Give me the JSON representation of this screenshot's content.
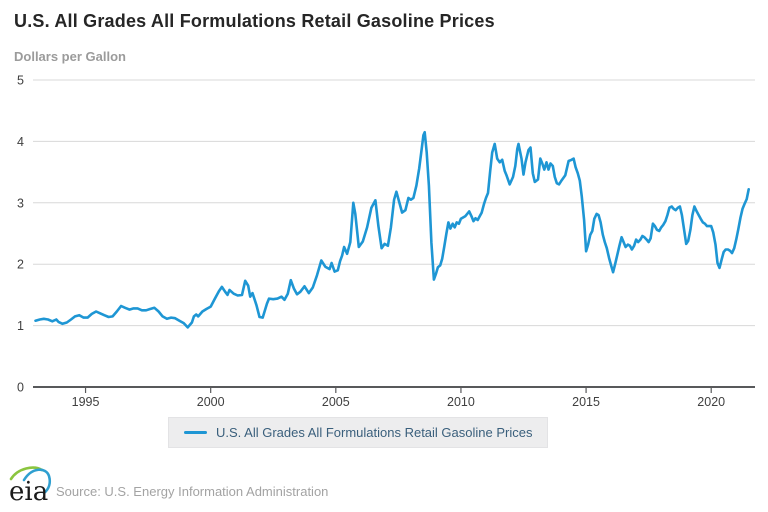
{
  "header": {
    "title": "U.S. All Grades All Formulations Retail Gasoline Prices",
    "units": "Dollars per Gallon"
  },
  "legend": {
    "label": "U.S. All Grades All Formulations Retail Gasoline Prices",
    "swatch_color": "#1e96d4"
  },
  "footer": {
    "logo_text": "eia",
    "source": "Source: U.S. Energy Information Administration"
  },
  "colors": {
    "line": "#1e96d4",
    "grid": "#d8d8d8",
    "axis": "#58595b",
    "tick_label": "#404040",
    "title": "#262626",
    "subtitle": "#9b9b9b",
    "legend_bg": "#ededee",
    "legend_text": "#3a5f7c",
    "source_text": "#a3a3a3",
    "logo_green": "#8bc53f",
    "logo_blue": "#2f9fd0"
  },
  "chart_data": {
    "type": "line",
    "title": "U.S. All Grades All Formulations Retail Gasoline Prices",
    "ylabel": "Dollars per Gallon",
    "xlabel": "",
    "xlim": [
      1992.9,
      2021.75
    ],
    "ylim": [
      0,
      5
    ],
    "x_ticks": [
      1995,
      2000,
      2005,
      2010,
      2015,
      2020
    ],
    "y_ticks": [
      0,
      1,
      2,
      3,
      4,
      5
    ],
    "grid": "horizontal",
    "legend_position": "bottom",
    "series": [
      {
        "name": "U.S. All Grades All Formulations Retail Gasoline Prices",
        "color": "#1e96d4",
        "x": [
          1993.0,
          1993.17,
          1993.33,
          1993.5,
          1993.67,
          1993.83,
          1993.92,
          1994.08,
          1994.25,
          1994.42,
          1994.58,
          1994.75,
          1994.92,
          1995.08,
          1995.25,
          1995.42,
          1995.58,
          1995.75,
          1995.92,
          1996.08,
          1996.25,
          1996.42,
          1996.58,
          1996.75,
          1996.92,
          1997.08,
          1997.25,
          1997.42,
          1997.58,
          1997.75,
          1997.92,
          1998.08,
          1998.25,
          1998.42,
          1998.58,
          1998.75,
          1998.92,
          1999.08,
          1999.25,
          1999.33,
          1999.42,
          1999.5,
          1999.67,
          1999.83,
          2000.0,
          2000.17,
          2000.33,
          2000.45,
          2000.58,
          2000.67,
          2000.75,
          2000.92,
          2001.08,
          2001.25,
          2001.38,
          2001.5,
          2001.58,
          2001.67,
          2001.83,
          2001.95,
          2002.08,
          2002.25,
          2002.33,
          2002.5,
          2002.67,
          2002.83,
          2002.95,
          2003.08,
          2003.2,
          2003.33,
          2003.45,
          2003.58,
          2003.75,
          2003.92,
          2004.08,
          2004.25,
          2004.42,
          2004.58,
          2004.75,
          2004.83,
          2004.95,
          2005.08,
          2005.17,
          2005.25,
          2005.33,
          2005.45,
          2005.58,
          2005.7,
          2005.78,
          2005.92,
          2006.08,
          2006.25,
          2006.42,
          2006.58,
          2006.7,
          2006.83,
          2006.95,
          2007.08,
          2007.2,
          2007.33,
          2007.42,
          2007.53,
          2007.65,
          2007.78,
          2007.9,
          2008.0,
          2008.1,
          2008.22,
          2008.33,
          2008.42,
          2008.5,
          2008.55,
          2008.63,
          2008.72,
          2008.82,
          2008.92,
          2009.0,
          2009.08,
          2009.17,
          2009.25,
          2009.33,
          2009.42,
          2009.5,
          2009.58,
          2009.67,
          2009.75,
          2009.83,
          2009.92,
          2010.0,
          2010.17,
          2010.33,
          2010.42,
          2010.5,
          2010.58,
          2010.67,
          2010.75,
          2010.83,
          2010.92,
          2011.0,
          2011.08,
          2011.17,
          2011.25,
          2011.35,
          2011.45,
          2011.55,
          2011.65,
          2011.75,
          2011.83,
          2011.95,
          2012.08,
          2012.17,
          2012.25,
          2012.3,
          2012.42,
          2012.5,
          2012.58,
          2012.7,
          2012.78,
          2012.87,
          2012.95,
          2013.08,
          2013.17,
          2013.25,
          2013.33,
          2013.42,
          2013.5,
          2013.58,
          2013.67,
          2013.75,
          2013.83,
          2013.92,
          2014.0,
          2014.17,
          2014.3,
          2014.42,
          2014.5,
          2014.58,
          2014.67,
          2014.75,
          2014.83,
          2014.92,
          2015.0,
          2015.08,
          2015.17,
          2015.25,
          2015.33,
          2015.42,
          2015.5,
          2015.58,
          2015.67,
          2015.75,
          2015.83,
          2015.92,
          2016.0,
          2016.08,
          2016.17,
          2016.25,
          2016.33,
          2016.42,
          2016.5,
          2016.58,
          2016.67,
          2016.75,
          2016.83,
          2016.92,
          2017.0,
          2017.08,
          2017.17,
          2017.25,
          2017.33,
          2017.42,
          2017.5,
          2017.58,
          2017.67,
          2017.75,
          2017.83,
          2017.92,
          2018.0,
          2018.08,
          2018.17,
          2018.25,
          2018.33,
          2018.42,
          2018.5,
          2018.58,
          2018.67,
          2018.75,
          2018.83,
          2018.92,
          2019.0,
          2019.08,
          2019.17,
          2019.25,
          2019.33,
          2019.42,
          2019.5,
          2019.58,
          2019.67,
          2019.75,
          2019.83,
          2019.92,
          2020.0,
          2020.08,
          2020.17,
          2020.25,
          2020.33,
          2020.42,
          2020.5,
          2020.58,
          2020.67,
          2020.75,
          2020.83,
          2020.92,
          2021.0,
          2021.08,
          2021.17,
          2021.25,
          2021.33,
          2021.42,
          2021.5
        ],
        "y": [
          1.08,
          1.1,
          1.11,
          1.1,
          1.07,
          1.1,
          1.06,
          1.03,
          1.05,
          1.1,
          1.15,
          1.17,
          1.13,
          1.13,
          1.19,
          1.23,
          1.2,
          1.17,
          1.14,
          1.15,
          1.23,
          1.32,
          1.29,
          1.26,
          1.28,
          1.28,
          1.25,
          1.25,
          1.27,
          1.29,
          1.23,
          1.15,
          1.11,
          1.13,
          1.12,
          1.08,
          1.04,
          0.97,
          1.05,
          1.15,
          1.18,
          1.15,
          1.23,
          1.27,
          1.31,
          1.44,
          1.56,
          1.63,
          1.55,
          1.5,
          1.58,
          1.52,
          1.49,
          1.5,
          1.73,
          1.65,
          1.47,
          1.53,
          1.33,
          1.14,
          1.13,
          1.36,
          1.44,
          1.43,
          1.44,
          1.47,
          1.42,
          1.52,
          1.74,
          1.6,
          1.51,
          1.55,
          1.64,
          1.53,
          1.62,
          1.82,
          2.06,
          1.96,
          1.92,
          2.02,
          1.88,
          1.9,
          2.05,
          2.14,
          2.28,
          2.17,
          2.36,
          3.0,
          2.82,
          2.28,
          2.37,
          2.6,
          2.92,
          3.04,
          2.62,
          2.26,
          2.33,
          2.3,
          2.6,
          3.05,
          3.18,
          3.02,
          2.84,
          2.88,
          3.08,
          3.05,
          3.08,
          3.28,
          3.56,
          3.84,
          4.1,
          4.15,
          3.82,
          3.28,
          2.35,
          1.75,
          1.84,
          1.95,
          1.98,
          2.09,
          2.28,
          2.5,
          2.68,
          2.58,
          2.66,
          2.6,
          2.68,
          2.66,
          2.74,
          2.78,
          2.86,
          2.78,
          2.7,
          2.75,
          2.72,
          2.78,
          2.84,
          2.98,
          3.08,
          3.16,
          3.52,
          3.82,
          3.96,
          3.72,
          3.66,
          3.7,
          3.52,
          3.44,
          3.3,
          3.42,
          3.6,
          3.88,
          3.96,
          3.72,
          3.46,
          3.66,
          3.86,
          3.9,
          3.48,
          3.34,
          3.38,
          3.72,
          3.64,
          3.54,
          3.66,
          3.54,
          3.64,
          3.6,
          3.42,
          3.32,
          3.3,
          3.35,
          3.45,
          3.68,
          3.7,
          3.72,
          3.58,
          3.48,
          3.36,
          3.1,
          2.72,
          2.21,
          2.32,
          2.48,
          2.54,
          2.74,
          2.82,
          2.8,
          2.68,
          2.48,
          2.36,
          2.26,
          2.1,
          1.98,
          1.87,
          2.02,
          2.16,
          2.3,
          2.44,
          2.36,
          2.28,
          2.32,
          2.3,
          2.24,
          2.3,
          2.4,
          2.36,
          2.4,
          2.46,
          2.44,
          2.4,
          2.36,
          2.42,
          2.66,
          2.62,
          2.56,
          2.54,
          2.6,
          2.64,
          2.7,
          2.8,
          2.92,
          2.94,
          2.9,
          2.88,
          2.92,
          2.94,
          2.8,
          2.55,
          2.33,
          2.38,
          2.56,
          2.8,
          2.94,
          2.86,
          2.8,
          2.74,
          2.68,
          2.66,
          2.62,
          2.62,
          2.62,
          2.52,
          2.32,
          2.02,
          1.94,
          2.08,
          2.2,
          2.24,
          2.24,
          2.22,
          2.18,
          2.26,
          2.4,
          2.56,
          2.76,
          2.9,
          2.98,
          3.06,
          3.22
        ]
      }
    ]
  }
}
